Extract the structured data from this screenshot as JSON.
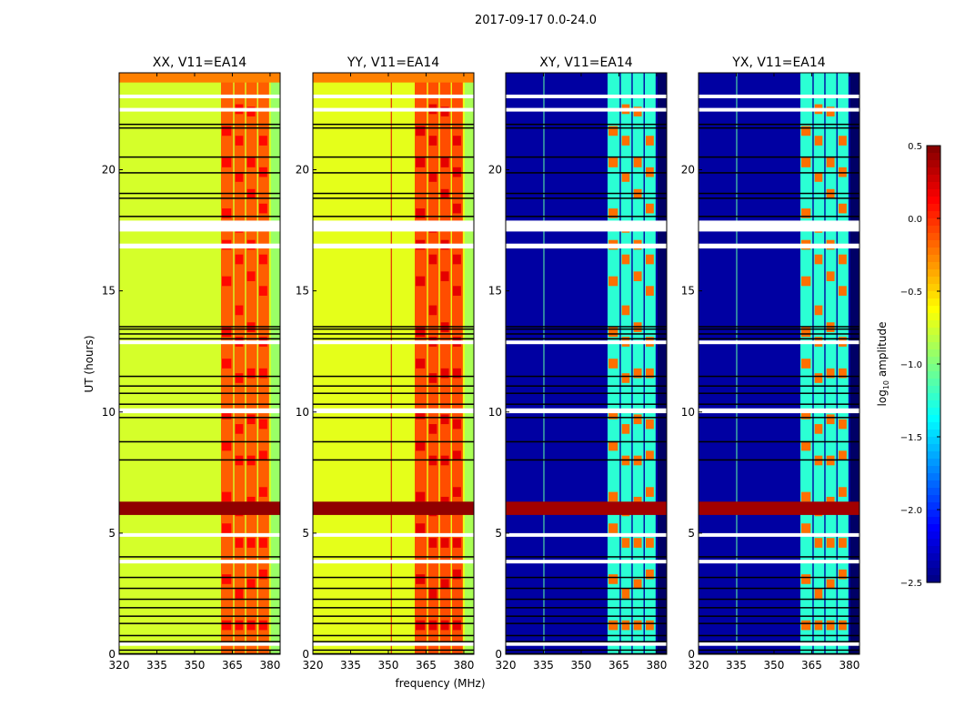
{
  "chart_data": {
    "type": "heatmap",
    "title": "2017-09-17 0.0-24.0",
    "xlabel": "frequency (MHz)",
    "ylabel": "UT (hours)",
    "xlim": [
      320,
      384
    ],
    "ylim": [
      0,
      24
    ],
    "xticks": [
      "320",
      "335",
      "350",
      "365",
      "380"
    ],
    "yticks": [
      "0",
      "5",
      "10",
      "15",
      "20"
    ],
    "colorbar": {
      "label": "log10 amplitude",
      "label_main": "log",
      "label_sub": "10",
      "label_rest": " amplitude",
      "range": [
        -2.5,
        0.5
      ],
      "ticks": [
        "0.5",
        "0.0",
        "−0.5",
        "−1.0",
        "−1.5",
        "−2.0",
        "−2.5"
      ],
      "colormap": "jet"
    },
    "panels": [
      {
        "title": "XX, V11=EA14",
        "base": -0.75,
        "band_value": -0.15,
        "band_hot": 0.1,
        "rfi_line": null,
        "strong_row": 0.45
      },
      {
        "title": "YY, V11=EA14",
        "base": -0.7,
        "band_value": -0.1,
        "band_hot": 0.2,
        "rfi_line": 351,
        "strong_row": 0.45
      },
      {
        "title": "XY, V11=EA14",
        "base": -2.4,
        "band_value": -1.25,
        "band_hot": -0.2,
        "rfi_line": 335,
        "strong_row": 0.4
      },
      {
        "title": "YX, V11=EA14",
        "base": -2.4,
        "band_value": -1.25,
        "band_hot": -0.2,
        "rfi_line": 335,
        "strong_row": 0.4
      }
    ],
    "rfi_bands_mhz": [
      [
        360.5,
        365.3
      ],
      [
        365.8,
        370.0
      ],
      [
        370.5,
        374.8
      ],
      [
        375.3,
        379.6
      ]
    ],
    "strong_row_hours": [
      5.75,
      6.3
    ],
    "flagged_white_hours": [
      [
        22.95,
        23.1
      ],
      [
        22.4,
        22.55
      ],
      [
        17.45,
        17.9
      ],
      [
        16.75,
        16.95
      ],
      [
        12.8,
        12.95
      ],
      [
        9.95,
        10.15
      ],
      [
        4.85,
        5.0
      ],
      [
        3.75,
        3.9
      ],
      [
        0.35,
        0.5
      ]
    ],
    "flagged_black_hours": [
      21.9,
      21.75,
      20.55,
      19.9,
      19.05,
      18.85,
      18.1,
      13.55,
      13.45,
      13.25,
      13.05,
      11.5,
      11.1,
      10.8,
      10.35,
      9.8,
      8.8,
      8.05,
      4.05,
      3.2,
      2.75,
      2.3,
      1.95,
      1.6,
      1.3,
      0.8,
      0.55,
      0.2,
      0.05
    ]
  }
}
